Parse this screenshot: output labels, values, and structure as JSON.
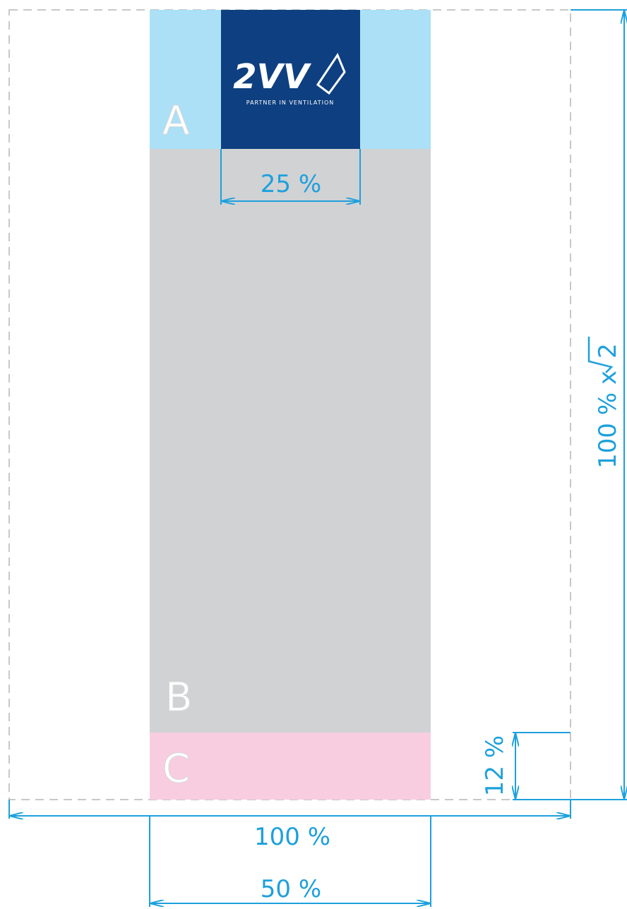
{
  "zones": {
    "a": "A",
    "b": "B",
    "c": "C"
  },
  "logo": {
    "mark": "2VV",
    "tagline": "PARTNER IN VENTILATION"
  },
  "dimensions": {
    "logo_width": "25 %",
    "page_width": "100 %",
    "column_width": "50 %",
    "footer_height": "12 %",
    "page_height": "100 % x",
    "page_height_root": "2"
  }
}
